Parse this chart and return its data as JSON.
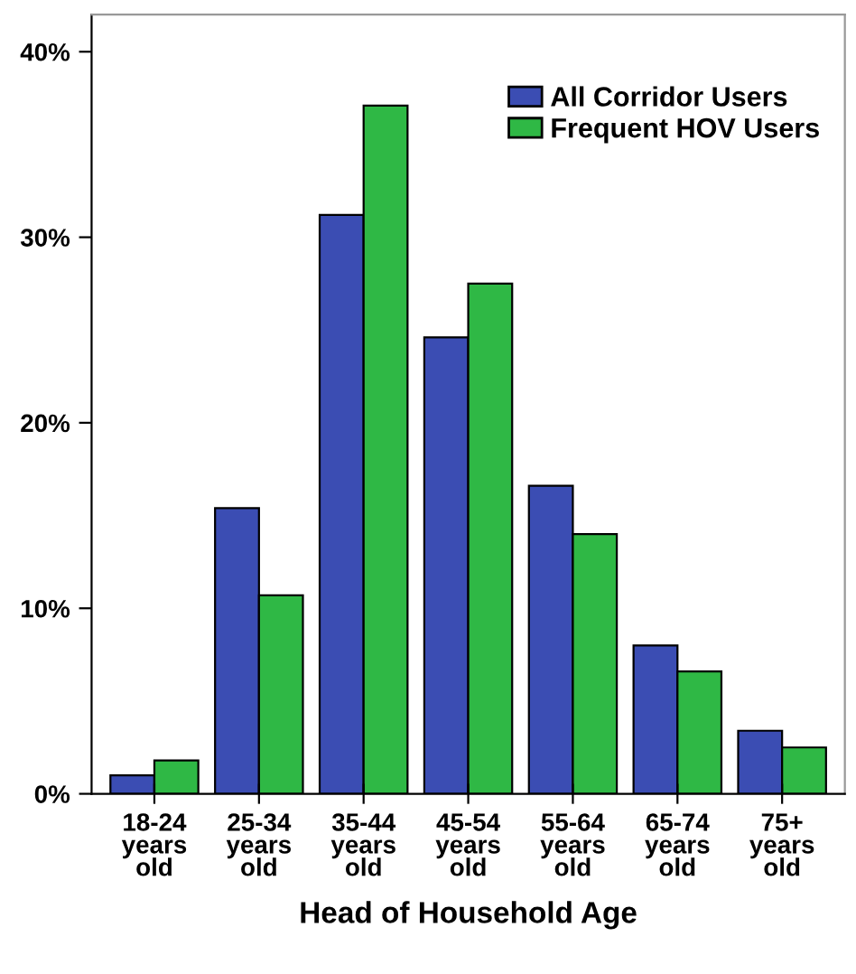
{
  "chart_data": {
    "type": "bar",
    "xlabel": "Head of Household Age",
    "categories": [
      "18-24\nyears\nold",
      "25-34\nyears\nold",
      "35-44\nyears\nold",
      "45-54\nyears\nold",
      "55-64\nyears\nold",
      "65-74\nyears\nold",
      "75+\nyears\nold"
    ],
    "series": [
      {
        "name": "All Corridor Users",
        "color": "#3b4db3",
        "values": [
          1.0,
          15.4,
          31.2,
          24.6,
          16.6,
          8.0,
          3.4
        ]
      },
      {
        "name": "Frequent HOV Users",
        "color": "#2fb845",
        "values": [
          1.8,
          10.7,
          37.1,
          27.5,
          14.0,
          6.6,
          2.5
        ]
      }
    ],
    "ylim": [
      0,
      42
    ],
    "yticks": [
      {
        "value": 0,
        "label": "0%"
      },
      {
        "value": 10,
        "label": "10%"
      },
      {
        "value": 20,
        "label": "20%"
      },
      {
        "value": 30,
        "label": "30%"
      },
      {
        "value": 40,
        "label": "40%"
      }
    ],
    "grid": false,
    "legend": "top right"
  }
}
